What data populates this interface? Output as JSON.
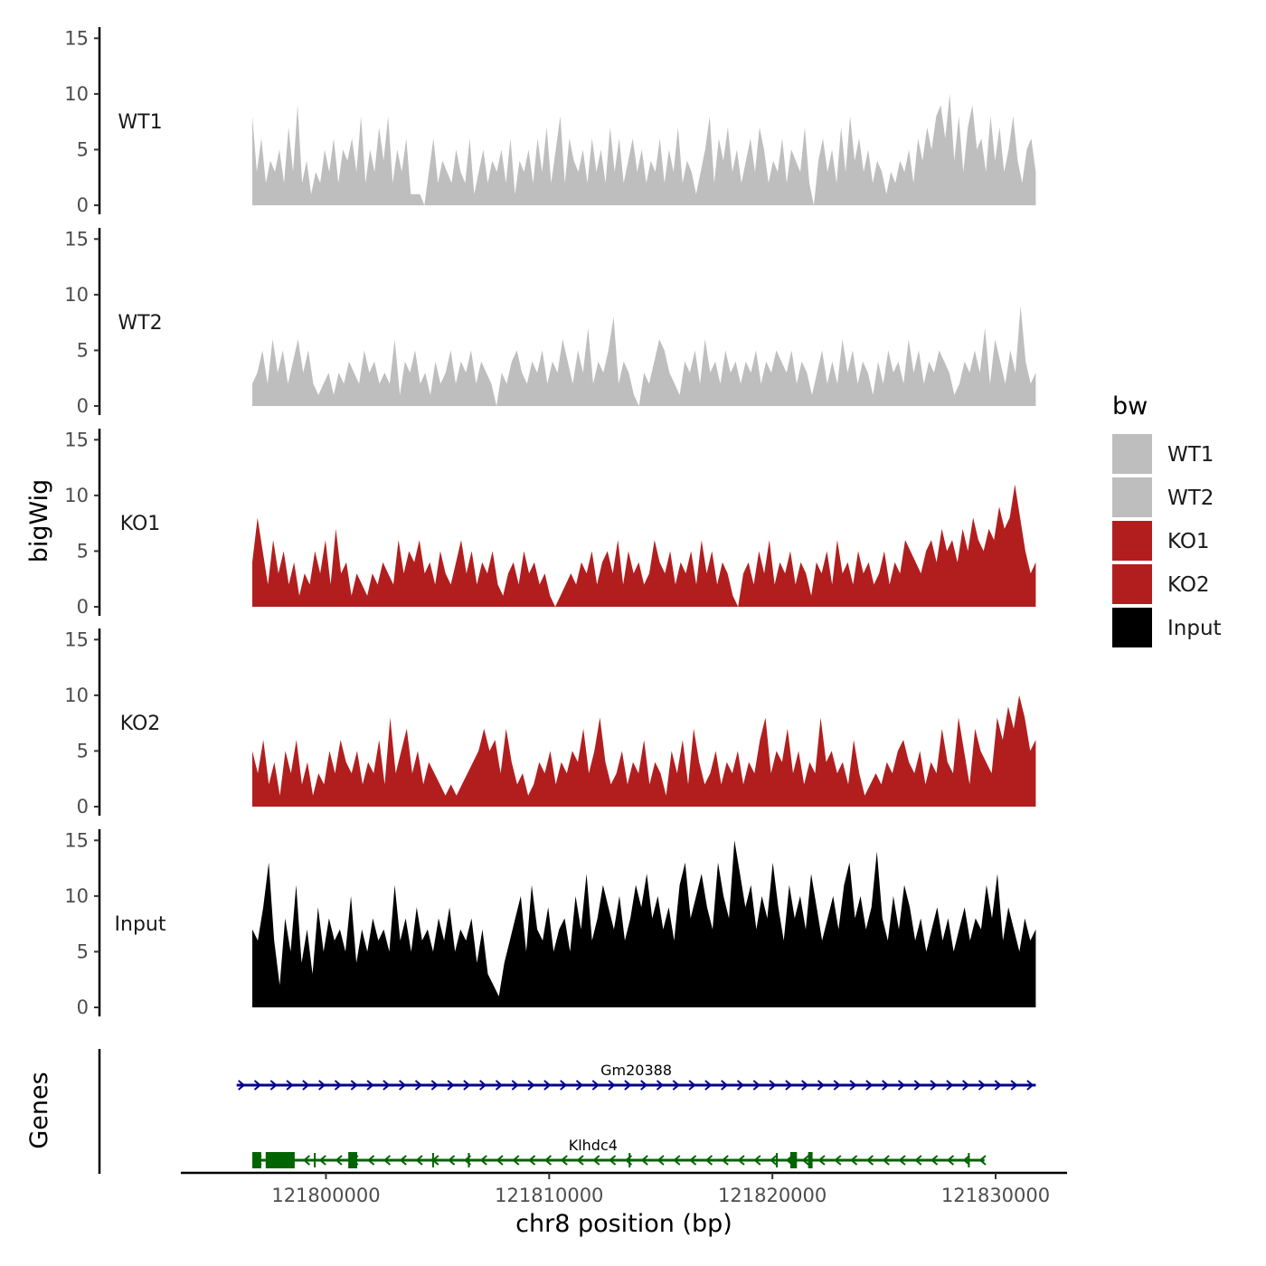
{
  "chart_data": {
    "type": "area",
    "title": "",
    "ylabel": "bigWig",
    "genes_label": "Genes",
    "xlabel": "chr8 position (bp)",
    "x_ticks": [
      121800000,
      121810000,
      121820000,
      121830000
    ],
    "xlim": [
      121793500,
      121833200
    ],
    "data_range": [
      121796700,
      121831800
    ],
    "y_ticks": [
      0,
      5,
      10,
      15
    ],
    "ylim": [
      0,
      16
    ],
    "legend": {
      "title": "bw",
      "position": "right",
      "entries": [
        {
          "label": "WT1",
          "color": "#bebebe"
        },
        {
          "label": "WT2",
          "color": "#bebebe"
        },
        {
          "label": "KO1",
          "color": "#b21e1e"
        },
        {
          "label": "KO2",
          "color": "#b21e1e"
        },
        {
          "label": "Input",
          "color": "#000000"
        }
      ]
    },
    "series": [
      {
        "name": "WT1",
        "color": "#bebebe",
        "values": [
          8,
          3,
          6,
          2,
          4,
          3,
          5,
          2,
          7,
          3,
          9,
          2,
          4,
          1,
          3,
          2,
          5,
          3,
          6,
          2,
          5,
          4,
          6,
          3,
          8,
          2,
          5,
          3,
          7,
          4,
          8,
          2,
          5,
          3,
          6,
          1,
          1,
          1,
          0,
          3,
          6,
          2,
          4,
          3,
          2,
          5,
          3,
          2,
          6,
          1,
          3,
          5,
          2,
          4,
          3,
          5,
          2,
          6,
          1,
          4,
          3,
          5,
          2,
          6,
          3,
          7,
          2,
          5,
          8,
          2,
          6,
          4,
          3,
          5,
          2,
          6,
          3,
          5,
          2,
          7,
          3,
          6,
          2,
          4,
          6,
          3,
          5,
          2,
          4,
          3,
          6,
          2,
          5,
          3,
          7,
          2,
          4,
          3,
          1,
          3,
          5,
          8,
          2,
          6,
          4,
          7,
          3,
          5,
          2,
          4,
          6,
          3,
          7,
          5,
          2,
          4,
          3,
          6,
          2,
          5,
          4,
          3,
          7,
          2,
          0,
          4,
          6,
          3,
          5,
          2,
          7,
          3,
          8,
          4,
          6,
          3,
          5,
          2,
          4,
          3,
          1,
          3,
          2,
          4,
          3,
          5,
          2,
          6,
          4,
          7,
          5,
          8,
          9,
          6,
          10,
          4,
          8,
          3,
          7,
          9,
          5,
          6,
          3,
          8,
          4,
          7,
          3,
          5,
          8,
          4,
          2,
          5,
          6,
          3
        ]
      },
      {
        "name": "WT2",
        "color": "#bebebe",
        "values": [
          2,
          3,
          5,
          2,
          6,
          3,
          5,
          2,
          4,
          6,
          3,
          5,
          2,
          1,
          2,
          3,
          1,
          3,
          2,
          4,
          3,
          2,
          5,
          3,
          4,
          2,
          3,
          2,
          6,
          1,
          4,
          3,
          5,
          2,
          3,
          1,
          4,
          2,
          3,
          5,
          2,
          4,
          3,
          5,
          2,
          4,
          3,
          2,
          0,
          3,
          2,
          4,
          5,
          3,
          2,
          4,
          3,
          5,
          2,
          4,
          3,
          6,
          4,
          2,
          5,
          3,
          7,
          2,
          4,
          3,
          5,
          8,
          2,
          4,
          3,
          1,
          0,
          3,
          2,
          4,
          6,
          5,
          3,
          2,
          1,
          4,
          3,
          5,
          2,
          6,
          3,
          4,
          2,
          5,
          3,
          4,
          2,
          4,
          3,
          5,
          2,
          4,
          3,
          5,
          4,
          3,
          5,
          2,
          4,
          3,
          1,
          3,
          5,
          2,
          4,
          2,
          6,
          3,
          5,
          2,
          4,
          3,
          1,
          4,
          2,
          5,
          3,
          4,
          2,
          6,
          3,
          5,
          2,
          4,
          3,
          5,
          4,
          3,
          1,
          2,
          4,
          3,
          5,
          3,
          7,
          2,
          6,
          4,
          2,
          5,
          3,
          9,
          4,
          2,
          3
        ]
      },
      {
        "name": "KO1",
        "color": "#b21e1e",
        "values": [
          4,
          8,
          5,
          2,
          6,
          3,
          5,
          2,
          4,
          1,
          3,
          2,
          5,
          3,
          6,
          2,
          7,
          3,
          4,
          1,
          3,
          2,
          1,
          3,
          2,
          4,
          3,
          2,
          6,
          3,
          5,
          4,
          6,
          3,
          4,
          2,
          5,
          3,
          2,
          4,
          6,
          3,
          5,
          2,
          4,
          3,
          5,
          2,
          1,
          3,
          4,
          2,
          5,
          3,
          4,
          2,
          3,
          1,
          0,
          1,
          2,
          3,
          2,
          4,
          3,
          5,
          2,
          4,
          5,
          3,
          6,
          2,
          5,
          3,
          4,
          2,
          3,
          6,
          4,
          3,
          5,
          2,
          4,
          3,
          5,
          2,
          6,
          3,
          5,
          2,
          4,
          3,
          1,
          0,
          3,
          4,
          2,
          5,
          3,
          6,
          2,
          4,
          3,
          5,
          2,
          4,
          3,
          1,
          4,
          3,
          5,
          2,
          6,
          3,
          4,
          2,
          5,
          3,
          4,
          2,
          3,
          5,
          2,
          4,
          3,
          6,
          5,
          4,
          3,
          5,
          6,
          4,
          7,
          5,
          6,
          4,
          7,
          5,
          8,
          6,
          5,
          7,
          6,
          9,
          7,
          8,
          11,
          8,
          5,
          3,
          4
        ]
      },
      {
        "name": "KO2",
        "color": "#b21e1e",
        "values": [
          5,
          3,
          6,
          2,
          4,
          1,
          5,
          3,
          6,
          2,
          4,
          1,
          3,
          2,
          5,
          3,
          6,
          4,
          3,
          5,
          2,
          4,
          3,
          6,
          2,
          8,
          3,
          5,
          7,
          3,
          5,
          2,
          4,
          3,
          2,
          1,
          2,
          1,
          2,
          3,
          4,
          5,
          7,
          5,
          6,
          3,
          7,
          4,
          2,
          3,
          1,
          2,
          4,
          3,
          5,
          2,
          4,
          3,
          5,
          4,
          7,
          3,
          5,
          8,
          4,
          2,
          3,
          5,
          2,
          4,
          3,
          6,
          2,
          4,
          3,
          1,
          5,
          3,
          6,
          2,
          7,
          4,
          2,
          3,
          5,
          2,
          4,
          3,
          5,
          2,
          4,
          3,
          6,
          8,
          3,
          5,
          4,
          7,
          3,
          5,
          2,
          4,
          3,
          8,
          4,
          5,
          3,
          4,
          2,
          6,
          3,
          1,
          2,
          3,
          2,
          4,
          3,
          5,
          6,
          4,
          3,
          5,
          2,
          4,
          3,
          7,
          4,
          3,
          8,
          5,
          2,
          7,
          5,
          4,
          3,
          8,
          6,
          9,
          7,
          10,
          8,
          5,
          6
        ]
      },
      {
        "name": "Input",
        "color": "#000000",
        "values": [
          7,
          6,
          9,
          13,
          6,
          2,
          8,
          5,
          11,
          4,
          7,
          3,
          9,
          5,
          8,
          6,
          7,
          5,
          10,
          4,
          7,
          5,
          8,
          6,
          7,
          5,
          11,
          6,
          8,
          5,
          9,
          6,
          7,
          5,
          8,
          6,
          9,
          5,
          7,
          6,
          8,
          4,
          7,
          3,
          2,
          1,
          4,
          6,
          8,
          10,
          5,
          11,
          7,
          6,
          9,
          5,
          7,
          8,
          5,
          10,
          7,
          12,
          6,
          8,
          11,
          9,
          7,
          10,
          6,
          8,
          11,
          9,
          12,
          8,
          10,
          7,
          9,
          6,
          11,
          13,
          8,
          10,
          12,
          9,
          7,
          13,
          10,
          8,
          15,
          12,
          9,
          11,
          7,
          10,
          8,
          13,
          9,
          6,
          11,
          8,
          10,
          7,
          12,
          9,
          6,
          8,
          10,
          7,
          11,
          13,
          8,
          10,
          7,
          9,
          14,
          8,
          6,
          10,
          7,
          11,
          9,
          6,
          8,
          5,
          7,
          9,
          6,
          8,
          5,
          7,
          9,
          6,
          8,
          7,
          11,
          8,
          12,
          6,
          9,
          7,
          5,
          8,
          6,
          7
        ]
      }
    ],
    "genes": [
      {
        "name": "Gm20388",
        "strand": "+",
        "color": "#00008b",
        "start": 121796000,
        "end": 121831800,
        "exons": []
      },
      {
        "name": "Klhdc4",
        "strand": "-",
        "color": "#006400",
        "start": 121796700,
        "end": 121829500,
        "exons": [
          [
            121796700,
            121797100
          ],
          [
            121797300,
            121798600
          ],
          [
            121801000,
            121801400
          ],
          [
            121820800,
            121821100
          ],
          [
            121821600,
            121821800
          ]
        ],
        "marks": [
          121799500,
          121804800,
          121806400,
          121813600,
          121820200,
          121828800
        ]
      }
    ]
  }
}
